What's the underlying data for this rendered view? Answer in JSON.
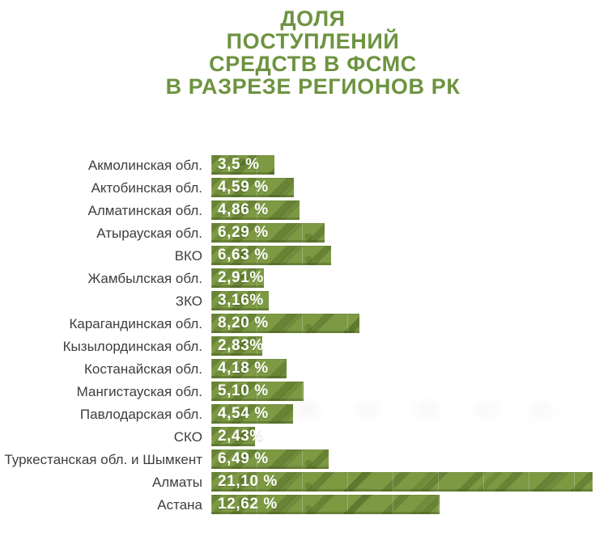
{
  "page": {
    "background": "#ffffff"
  },
  "title": {
    "text": "ДОЛЯ\nПОСТУПЛЕНИЙ\nСРЕДСТВ В ФСМС\nВ РАЗРЕЗЕ РЕГИОНОВ РК",
    "color": "#6d9340"
  },
  "chart_data": {
    "type": "bar",
    "orientation": "horizontal",
    "title": "ДОЛЯ ПОСТУПЛЕНИЙ СРЕДСТВ В ФСМС В РАЗРЕЗЕ РЕГИОНОВ РК",
    "xlabel": "",
    "ylabel": "",
    "unit": "%",
    "xlim": [
      0,
      21.2
    ],
    "grid": false,
    "legend": false,
    "categories": [
      "Акмолинская обл.",
      "Актобинская обл.",
      "Алматинская обл.",
      "Атырауская обл.",
      "ВКО",
      "Жамбылская обл.",
      "ЗКО",
      "Карагандинская обл.",
      "Кызылординская обл.",
      "Костанайская обл.",
      "Мангистауская обл.",
      "Павлодарская обл.",
      "СКО",
      "Туркестанская обл. и Шымкент",
      "Алматы",
      "Астана"
    ],
    "values": [
      3.5,
      4.59,
      4.86,
      6.29,
      6.63,
      2.91,
      3.16,
      8.2,
      2.83,
      4.18,
      5.1,
      4.54,
      2.43,
      6.49,
      21.1,
      12.62
    ],
    "value_labels": [
      "3,5 %",
      "4,59 %",
      "4,86 %",
      "6,29 %",
      "6,63 %",
      "2,91%",
      "3,16%",
      "8,20 %",
      "2,83%",
      "4,18 %",
      "5,10 %",
      "4,54 %",
      "2,43%",
      "6,49 %",
      "21,10 %",
      "12,62 %"
    ],
    "bar_color": "#7d9a43",
    "bar_pattern_color": "#5f7a33",
    "label_color": "#3e3e3e",
    "value_text_color": "#ffffff"
  }
}
